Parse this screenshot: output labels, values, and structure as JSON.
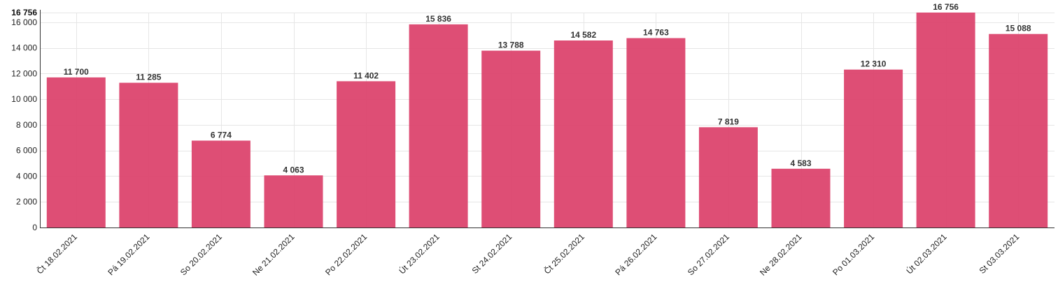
{
  "chart_data": {
    "type": "bar",
    "bar_color": "#dc456e",
    "categories": [
      "Čt 18.02.2021",
      "Pá 19.02.2021",
      "So 20.02.2021",
      "Ne 21.02.2021",
      "Po 22.02.2021",
      "Út 23.02.2021",
      "St 24.02.2021",
      "Čt 25.02.2021",
      "Pá 26.02.2021",
      "So 27.02.2021",
      "Ne 28.02.2021",
      "Po 01.03.2021",
      "Út 02.03.2021",
      "St 03.03.2021"
    ],
    "values": [
      11700,
      11285,
      6774,
      4063,
      11402,
      15836,
      13788,
      14582,
      14763,
      7819,
      4583,
      12310,
      16756,
      15088
    ],
    "data_labels": [
      "11 700",
      "11 285",
      "6 774",
      "4 063",
      "11 402",
      "15 836",
      "13 788",
      "14 582",
      "14 763",
      "7 819",
      "4 583",
      "12 310",
      "16 756",
      "15 088"
    ],
    "y_ticks": [
      0,
      2000,
      4000,
      6000,
      8000,
      10000,
      12000,
      14000,
      16000
    ],
    "y_tick_labels": [
      "0",
      "2 000",
      "4 000",
      "6 000",
      "8 000",
      "10 000",
      "12 000",
      "14 000",
      "16 000"
    ],
    "y_max_label": "16 756",
    "ylim": [
      0,
      16756
    ],
    "grid": true,
    "legend": "none"
  }
}
